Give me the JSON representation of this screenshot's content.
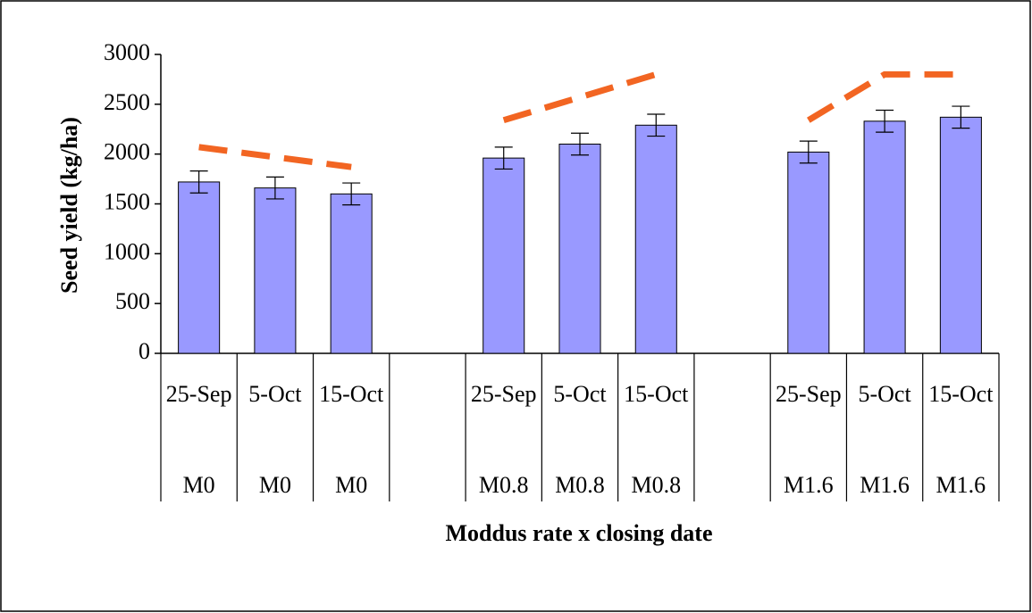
{
  "chart_data": {
    "type": "bar",
    "y_label": "Seed yield (kg/ha)",
    "x_label": "Moddus rate x closing date",
    "categories": [
      "25-Sep",
      "5-Oct",
      "15-Oct",
      null,
      "25-Sep",
      "5-Oct",
      "15-Oct",
      null,
      "25-Sep",
      "5-Oct",
      "15-Oct"
    ],
    "groups": [
      "M0",
      "M0",
      "M0",
      null,
      "M0.8",
      "M0.8",
      "M0.8",
      null,
      "M1.6",
      "M1.6",
      "M1.6"
    ],
    "series": [
      {
        "type": "bar",
        "color": "#9999ff",
        "values": [
          1720,
          1660,
          1600,
          null,
          1960,
          2100,
          2290,
          null,
          2020,
          2330,
          2370
        ],
        "errors": [
          110,
          110,
          110,
          null,
          110,
          110,
          110,
          null,
          110,
          110,
          110
        ]
      },
      {
        "type": "line",
        "color": "#f26522",
        "dashed": true,
        "values": [
          2070,
          1970,
          1870,
          null,
          2340,
          2570,
          2800,
          null,
          2340,
          2800,
          2800
        ]
      }
    ],
    "ylim": [
      0,
      3000
    ],
    "yticks": [
      0,
      500,
      1000,
      1500,
      2000,
      2500,
      3000
    ],
    "grid": false
  }
}
